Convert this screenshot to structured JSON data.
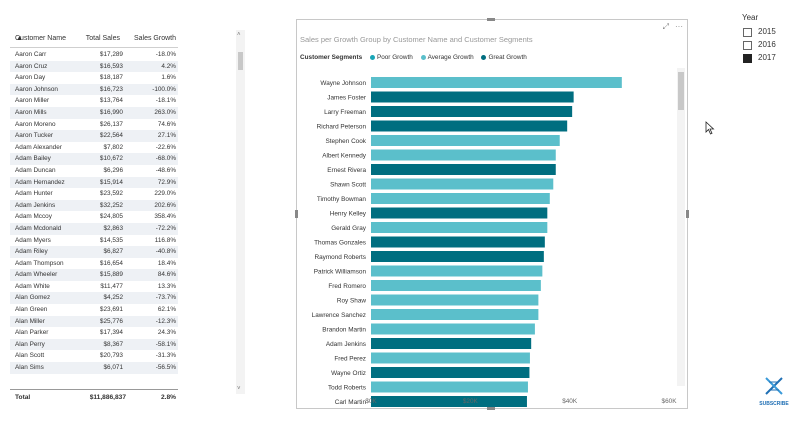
{
  "table": {
    "headers": {
      "name": "Customer Name",
      "sales": "Total Sales",
      "growth": "Sales Growth"
    },
    "rows": [
      [
        "Aaron Carr",
        "$17,289",
        "-18.0%"
      ],
      [
        "Aaron Cruz",
        "$16,593",
        "4.2%"
      ],
      [
        "Aaron Day",
        "$18,187",
        "1.6%"
      ],
      [
        "Aaron Johnson",
        "$16,723",
        "-100.0%"
      ],
      [
        "Aaron Miller",
        "$13,764",
        "-18.1%"
      ],
      [
        "Aaron Mills",
        "$16,990",
        "263.0%"
      ],
      [
        "Aaron Moreno",
        "$26,137",
        "74.6%"
      ],
      [
        "Aaron Tucker",
        "$22,564",
        "27.1%"
      ],
      [
        "Adam Alexander",
        "$7,802",
        "-22.6%"
      ],
      [
        "Adam Bailey",
        "$10,672",
        "-68.0%"
      ],
      [
        "Adam Duncan",
        "$6,296",
        "-48.6%"
      ],
      [
        "Adam Hernandez",
        "$15,914",
        "72.9%"
      ],
      [
        "Adam Hunter",
        "$23,592",
        "229.0%"
      ],
      [
        "Adam Jenkins",
        "$32,252",
        "202.6%"
      ],
      [
        "Adam Mccoy",
        "$24,805",
        "358.4%"
      ],
      [
        "Adam Mcdonald",
        "$2,863",
        "-72.2%"
      ],
      [
        "Adam Myers",
        "$14,535",
        "116.8%"
      ],
      [
        "Adam Riley",
        "$6,827",
        "-40.8%"
      ],
      [
        "Adam Thompson",
        "$16,654",
        "18.4%"
      ],
      [
        "Adam Wheeler",
        "$15,889",
        "84.6%"
      ],
      [
        "Adam White",
        "$11,477",
        "13.3%"
      ],
      [
        "Alan Gomez",
        "$4,252",
        "-73.7%"
      ],
      [
        "Alan Green",
        "$23,691",
        "62.1%"
      ],
      [
        "Alan Miller",
        "$25,776",
        "-12.3%"
      ],
      [
        "Alan Parker",
        "$17,394",
        "24.3%"
      ],
      [
        "Alan Perry",
        "$8,367",
        "-58.1%"
      ],
      [
        "Alan Scott",
        "$20,793",
        "-31.3%"
      ],
      [
        "Alan Sims",
        "$6,071",
        "-56.5%"
      ]
    ],
    "total": {
      "label": "Total",
      "sales": "$11,886,837",
      "growth": "2.8%"
    }
  },
  "chart_data": {
    "type": "bar",
    "orientation": "horizontal",
    "title": "Sales per Growth Group by Customer Name and Customer Segments",
    "legend_title": "Customer Segments",
    "legend_position": "top-left",
    "series": [
      {
        "name": "Poor Growth",
        "color": "#1aa6b7"
      },
      {
        "name": "Average Growth",
        "color": "#5bbfcb"
      },
      {
        "name": "Great Growth",
        "color": "#006e80"
      }
    ],
    "categories": [
      "Wayne Johnson",
      "James Foster",
      "Larry Freeman",
      "Richard Peterson",
      "Stephen Cook",
      "Albert Kennedy",
      "Ernest Rivera",
      "Shawn Scott",
      "Timothy Bowman",
      "Henry Kelley",
      "Gerald Gray",
      "Thomas Gonzales",
      "Raymond Roberts",
      "Patrick Williamson",
      "Fred Romero",
      "Roy Shaw",
      "Lawrence Sanchez",
      "Brandon Martin",
      "Adam Jenkins",
      "Fred Perez",
      "Wayne Ortiz",
      "Todd Roberts",
      "Carl Martin"
    ],
    "values": [
      50500,
      40800,
      40500,
      39500,
      38000,
      37200,
      37200,
      36700,
      36000,
      35500,
      35500,
      35000,
      34800,
      34500,
      34200,
      33700,
      33700,
      33000,
      32252,
      32000,
      31900,
      31600,
      31400
    ],
    "segments": [
      "Average Growth",
      "Great Growth",
      "Great Growth",
      "Great Growth",
      "Average Growth",
      "Average Growth",
      "Great Growth",
      "Average Growth",
      "Average Growth",
      "Great Growth",
      "Average Growth",
      "Great Growth",
      "Great Growth",
      "Average Growth",
      "Average Growth",
      "Average Growth",
      "Average Growth",
      "Average Growth",
      "Great Growth",
      "Average Growth",
      "Great Growth",
      "Average Growth",
      "Great Growth"
    ],
    "x_ticks": [
      "$0K",
      "$20K",
      "$40K",
      "$60K"
    ],
    "xlim": [
      0,
      60000
    ],
    "grid": false
  },
  "slicer": {
    "title": "Year",
    "items": [
      {
        "label": "2015",
        "checked": false
      },
      {
        "label": "2016",
        "checked": false
      },
      {
        "label": "2017",
        "checked": true
      }
    ]
  },
  "branding": {
    "subscribe_label": "SUBSCRIBE"
  },
  "colors": {
    "accent": "#006e80",
    "border": "#c8c8c8"
  }
}
